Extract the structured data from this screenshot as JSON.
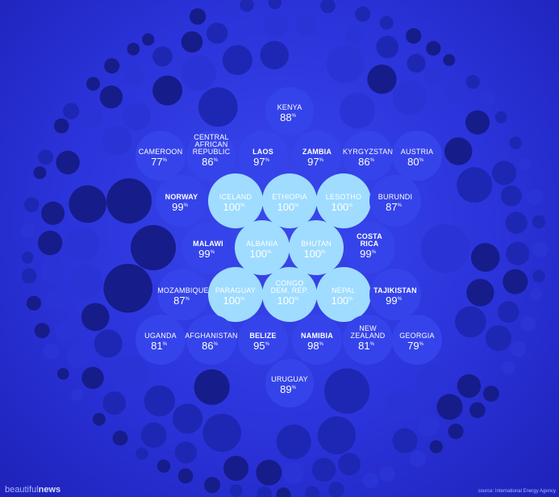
{
  "chart_data": {
    "type": "bubble",
    "title": "",
    "unit": "%",
    "items": [
      {
        "name": "KENYA",
        "value": 88
      },
      {
        "name": "CAMEROON",
        "value": 77
      },
      {
        "name": "CENTRAL AFRICAN REPUBLIC",
        "value": 86
      },
      {
        "name": "LAOS",
        "value": 97
      },
      {
        "name": "ZAMBIA",
        "value": 97
      },
      {
        "name": "KYRGYZSTAN",
        "value": 86
      },
      {
        "name": "AUSTRIA",
        "value": 80
      },
      {
        "name": "NORWAY",
        "value": 99
      },
      {
        "name": "ICELAND",
        "value": 100
      },
      {
        "name": "ETHIOPIA",
        "value": 100
      },
      {
        "name": "LESOTHO",
        "value": 100
      },
      {
        "name": "BURUNDI",
        "value": 87
      },
      {
        "name": "MALAWI",
        "value": 99
      },
      {
        "name": "ALBANIA",
        "value": 100
      },
      {
        "name": "BHUTAN",
        "value": 100
      },
      {
        "name": "COSTA RICA",
        "value": 99
      },
      {
        "name": "MOZAMBIQUE",
        "value": 87
      },
      {
        "name": "PARAGUAY",
        "value": 100
      },
      {
        "name": "CONGO DEM. REP.",
        "value": 100
      },
      {
        "name": "NEPAL",
        "value": 100
      },
      {
        "name": "TAJIKISTAN",
        "value": 99
      },
      {
        "name": "UGANDA",
        "value": 81
      },
      {
        "name": "AFGHANISTAN",
        "value": 86
      },
      {
        "name": "BELIZE",
        "value": 95
      },
      {
        "name": "NAMIBIA",
        "value": 98
      },
      {
        "name": "NEW ZEALAND",
        "value": 81
      },
      {
        "name": "GEORGIA",
        "value": 79
      },
      {
        "name": "URUGUAY",
        "value": 89
      }
    ],
    "colors": {
      "highlight": "#9fdcff",
      "labeled": "#3544ea",
      "ring1": "#2a34d6",
      "ring2": "#1e26b4",
      "ring3": "#161c8a"
    }
  },
  "branding": {
    "prefix": "beautiful",
    "suffix": "news"
  },
  "source": "source: International Energy Agency"
}
